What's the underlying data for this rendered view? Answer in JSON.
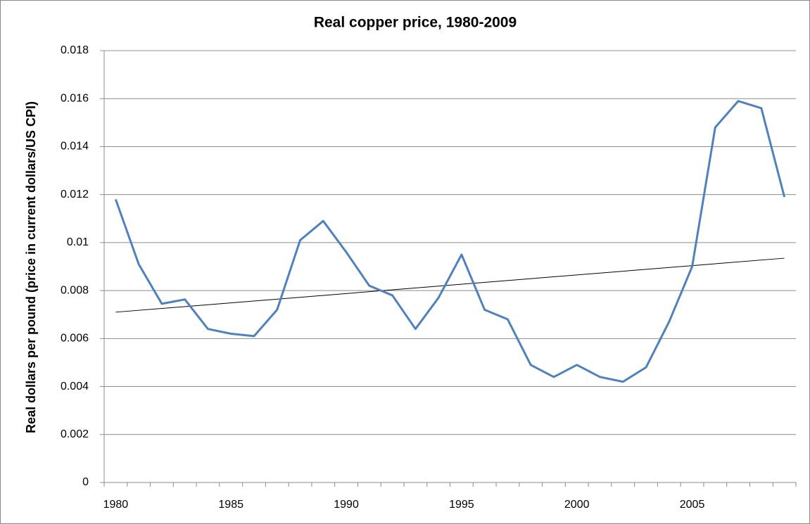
{
  "chart_data": {
    "type": "line",
    "title": "Real copper price, 1980-2009",
    "y_label": "Real dollars per pound (price in current dollars/US CPI)",
    "x": [
      1980,
      1981,
      1982,
      1983,
      1984,
      1985,
      1986,
      1987,
      1988,
      1989,
      1990,
      1991,
      1992,
      1993,
      1994,
      1995,
      1996,
      1997,
      1998,
      1999,
      2000,
      2001,
      2002,
      2003,
      2004,
      2005,
      2006,
      2007,
      2008,
      2009
    ],
    "series": [
      {
        "color": "#4f81bd",
        "values": [
          0.0118,
          0.0091,
          0.00745,
          0.00763,
          0.0064,
          0.0062,
          0.0061,
          0.0072,
          0.0101,
          0.0109,
          0.0096,
          0.0082,
          0.0078,
          0.0064,
          0.0077,
          0.0095,
          0.0072,
          0.0068,
          0.0049,
          0.0044,
          0.0049,
          0.0044,
          0.0042,
          0.0048,
          0.0067,
          0.009,
          0.0148,
          0.0159,
          0.0156,
          0.0119
        ]
      }
    ],
    "trendline": {
      "color": "#000000",
      "values": [
        0.0071,
        0.00935
      ]
    },
    "xlim": [
      1979.5,
      2009.5
    ],
    "xticks": [
      1980,
      1985,
      1990,
      1995,
      2000,
      2005
    ],
    "ylim": [
      0,
      0.018
    ],
    "yticks": [
      0,
      0.002,
      0.004,
      0.006,
      0.008,
      0.01,
      0.012,
      0.014,
      0.016,
      0.018
    ],
    "grid": true
  }
}
